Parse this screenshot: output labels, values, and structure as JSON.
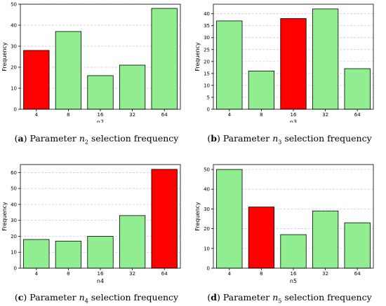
{
  "chart_data": [
    {
      "type": "bar",
      "categories": [
        "4",
        "8",
        "16",
        "32",
        "64"
      ],
      "values": [
        28,
        37,
        16,
        21,
        48
      ],
      "highlight_index": 0,
      "xlabel": "n2",
      "ylabel": "Frequency",
      "ylim": [
        0,
        50
      ],
      "yticks": [
        0,
        10,
        20,
        30,
        40,
        50
      ],
      "grid": "horizontal dashed"
    },
    {
      "type": "bar",
      "categories": [
        "4",
        "8",
        "16",
        "32",
        "64"
      ],
      "values": [
        37,
        16,
        38,
        42,
        17
      ],
      "highlight_index": 2,
      "xlabel": "n3",
      "ylabel": "Frequency",
      "ylim": [
        0,
        44
      ],
      "yticks": [
        0,
        5,
        10,
        15,
        20,
        25,
        30,
        35,
        40
      ],
      "grid": "horizontal dashed"
    },
    {
      "type": "bar",
      "categories": [
        "4",
        "8",
        "16",
        "32",
        "64"
      ],
      "values": [
        18,
        17,
        20,
        33,
        62
      ],
      "highlight_index": 4,
      "xlabel": "n4",
      "ylabel": "Frequency",
      "ylim": [
        0,
        65
      ],
      "yticks": [
        0,
        10,
        20,
        30,
        40,
        50,
        60
      ],
      "grid": "horizontal dashed"
    },
    {
      "type": "bar",
      "categories": [
        "4",
        "8",
        "16",
        "32",
        "64"
      ],
      "values": [
        50,
        31,
        17,
        29,
        23
      ],
      "highlight_index": 1,
      "xlabel": "n5",
      "ylabel": "Frequency",
      "ylim": [
        0,
        52.5
      ],
      "yticks": [
        0,
        10,
        20,
        30,
        40,
        50
      ],
      "grid": "horizontal dashed"
    }
  ],
  "colors": {
    "default_bar": "#90ee90",
    "highlight_bar": "#ff0000",
    "bar_edge": "#000000",
    "grid": "#c8c8c8"
  },
  "captions": [
    {
      "letter": "a",
      "prefix": "Parameter ",
      "var": "n",
      "sub": "2",
      "suffix": " selection frequency"
    },
    {
      "letter": "b",
      "prefix": "Parameter ",
      "var": "n",
      "sub": "3",
      "suffix": " selection frequency"
    },
    {
      "letter": "c",
      "prefix": "Parameter ",
      "var": "n",
      "sub": "4",
      "suffix": " selection frequency"
    },
    {
      "letter": "d",
      "prefix": "Parameter ",
      "var": "n",
      "sub": "5",
      "suffix": " selection frequency"
    }
  ]
}
